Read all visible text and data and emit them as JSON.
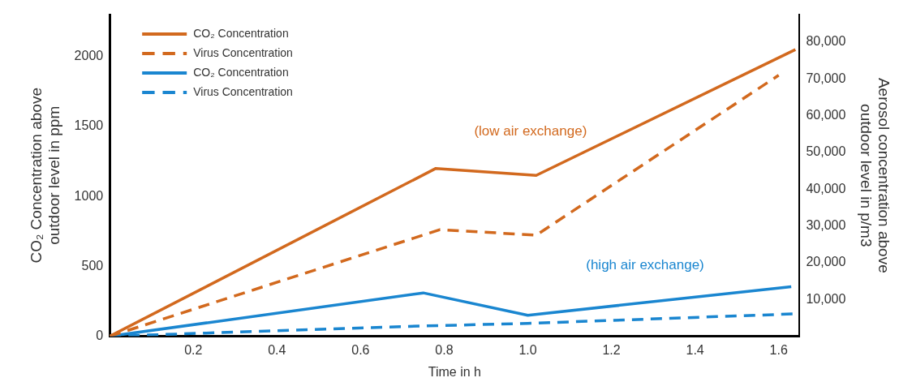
{
  "chart_data": {
    "type": "line",
    "xlabel": "Time in h",
    "ylabel": "CO₂ Concentration above outdoor level in ppm",
    "y2label": "Aerosol concentration above outdoor level in p/m3",
    "xlim": [
      0,
      1.65
    ],
    "xticks": [
      0.2,
      0.4,
      0.6,
      0.8,
      {
        "value": 1,
        "label": "1.0"
      },
      1.2,
      1.4,
      1.6
    ],
    "ylim": [
      0,
      2300
    ],
    "yticks": [
      0,
      500,
      1000,
      1500,
      2000
    ],
    "y2lim": [
      0,
      87500
    ],
    "y2ticks": [
      {
        "value": 10000,
        "label": "10,000"
      },
      {
        "value": 20000,
        "label": "20,000"
      },
      {
        "value": 30000,
        "label": "30,000"
      },
      {
        "value": 40000,
        "label": "40,000"
      },
      {
        "value": 50000,
        "label": "50,000"
      },
      {
        "value": 60000,
        "label": "60,000"
      },
      {
        "value": 70000,
        "label": "70,000"
      },
      {
        "value": 80000,
        "label": "80,000"
      }
    ],
    "grid": false,
    "legend": "top left",
    "marker": "none",
    "series": [
      {
        "name": "CO₂ Concentration",
        "color": "#d2691e",
        "line_style": "solid",
        "x": [
          0,
          0.78,
          1.02,
          1.64
        ],
        "values": [
          0,
          1200,
          1150,
          2050
        ]
      },
      {
        "name": "Virus Concentration",
        "color": "#d2691e",
        "line_style": "dashed",
        "axis": "y2",
        "x": [
          0,
          0.79,
          1.02,
          1.6
        ],
        "values": [
          0,
          29000,
          27500,
          71000
        ]
      },
      {
        "name": "CO₂ Concentration",
        "color": "#1a86d0",
        "line_style": "solid",
        "x": [
          0,
          0.75,
          1.0,
          1.63
        ],
        "values": [
          0,
          310,
          150,
          355
        ]
      },
      {
        "name": "Virus Concentration",
        "color": "#1a86d0",
        "line_style": "dashed",
        "axis": "y2",
        "x": [
          0,
          0.75,
          1.0,
          1.64
        ],
        "values": [
          0,
          2800,
          3500,
          6100
        ]
      }
    ],
    "annotations": [
      "(low air exchange)",
      "(high air exchange)"
    ]
  }
}
